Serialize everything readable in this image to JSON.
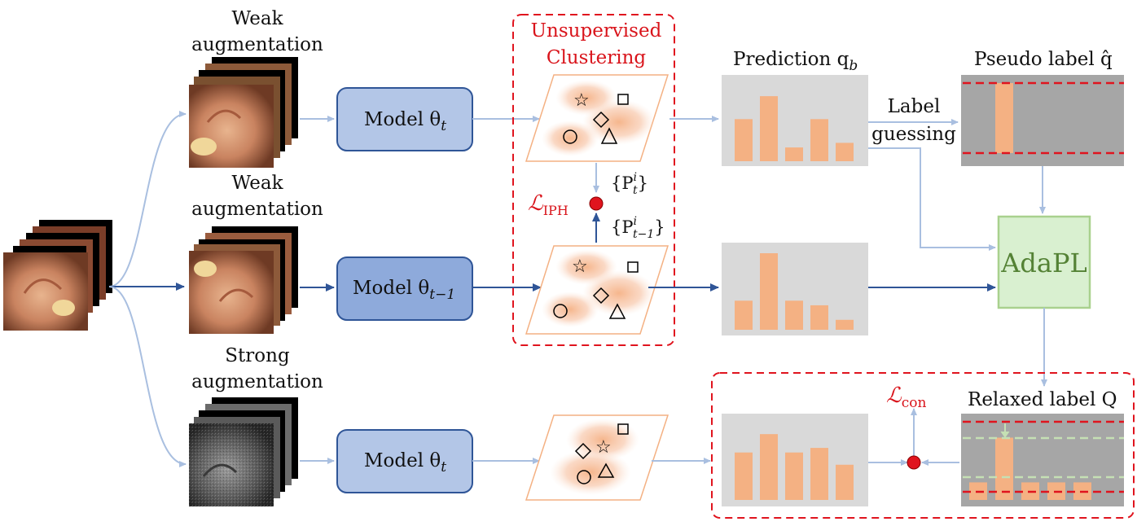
{
  "labels": {
    "weak_aug_1_line1": "Weak",
    "weak_aug_1_line2": "augmentation",
    "weak_aug_2_line1": "Weak",
    "weak_aug_2_line2": "augmentation",
    "strong_aug_line1": "Strong",
    "strong_aug_line2": "augmentation",
    "model_top": "Model θ",
    "model_top_sub": "t",
    "model_mid": "Model θ",
    "model_mid_sub": "t−1",
    "model_bot": "Model θ",
    "model_bot_sub": "t",
    "unsup_line1": "Unsupervised",
    "unsup_line2": "Clustering",
    "prediction": "Prediction q",
    "prediction_sub": "b",
    "pseudo_label": "Pseudo label q̂",
    "label_guess_line1": "Label",
    "label_guess_line2": "guessing",
    "adapl": "AdaPL",
    "relaxed_label": "Relaxed label Q",
    "l_iph": "ℒ",
    "l_iph_sub": "IPH",
    "l_con": "ℒ",
    "l_con_sub": "con",
    "pt_set": "{P",
    "pt_sup": "i",
    "pt_sub": "t",
    "pt_close": "}",
    "pt1_set": "{P",
    "pt1_sup": "i",
    "pt1_sub": "t−1",
    "pt1_close": "}"
  },
  "colors": {
    "model_light": "#b3c6e7",
    "model_dark": "#8eaadb",
    "model_border": "#2f5597",
    "arrow_light": "#a9bfe0",
    "arrow_dark": "#2f5597",
    "red_dashed": "#e0141e",
    "bar_orange": "#f4b183",
    "panel_gray": "#d9d9d9",
    "panel_dark_gray": "#a6a6a6",
    "adapl_fill": "#d9f0d0",
    "adapl_border": "#a9d18e",
    "adapl_text": "#548235",
    "green_dashed": "#c5e0b4"
  },
  "bars": {
    "prediction_top": [
      0.55,
      0.85,
      0.18,
      0.55,
      0.24
    ],
    "prediction_mid": [
      0.38,
      1.0,
      0.38,
      0.32,
      0.13
    ],
    "prediction_bot": [
      0.62,
      0.86,
      0.62,
      0.68,
      0.46
    ],
    "pseudo_label": [
      0.0,
      1.0,
      0.0,
      0.0,
      0.0
    ],
    "relaxed_label": [
      0.24,
      0.85,
      0.24,
      0.24,
      0.24
    ]
  }
}
